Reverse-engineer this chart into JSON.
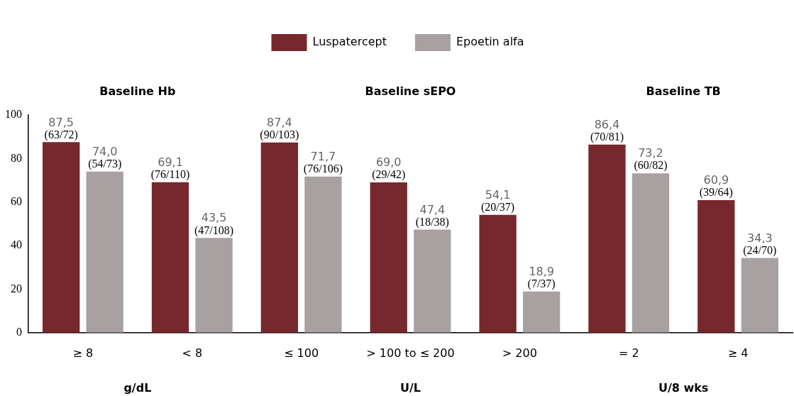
{
  "chart_data": {
    "type": "bar",
    "categories": [
      "≥ 8",
      "< 8",
      "≤ 100",
      "> 100 to ≤ 200",
      "> 200",
      "= 2",
      "≥ 4"
    ],
    "series": [
      {
        "name": "Luspatercept",
        "color": "#77282c",
        "values": [
          87.5,
          69.1,
          87.4,
          69.0,
          54.1,
          86.4,
          60.9
        ],
        "value_labels": [
          "87,5\n(63/72)",
          "69,1\n(76/110)",
          "87,4\n(90/103)",
          "69,0\n(29/42)",
          "54,1\n(20/37)",
          "86,4\n(70/81)",
          "60,9\n(39/64)"
        ]
      },
      {
        "name": "Epoetin alfa",
        "color": "#a7a1a1",
        "values": [
          74.0,
          43.5,
          71.7,
          47.4,
          18.9,
          73.2,
          34.3
        ],
        "value_labels": [
          "74,0\n(54/73)",
          "43,5\n(47/108)",
          "71,7\n(76/106)",
          "47,4\n(18/38)",
          "18,9\n(7/37)",
          "73,2\n(60/82)",
          "34,3\n(24/70)"
        ]
      }
    ],
    "annotations": [
      "Baseline Hb",
      "Baseline sEPO",
      "Baseline TB",
      "g/dL",
      "U/L",
      "U/8 wks"
    ],
    "ylim": [
      0,
      100
    ],
    "yticks": [
      0,
      20,
      40,
      60,
      80,
      100
    ],
    "legend": "top"
  }
}
